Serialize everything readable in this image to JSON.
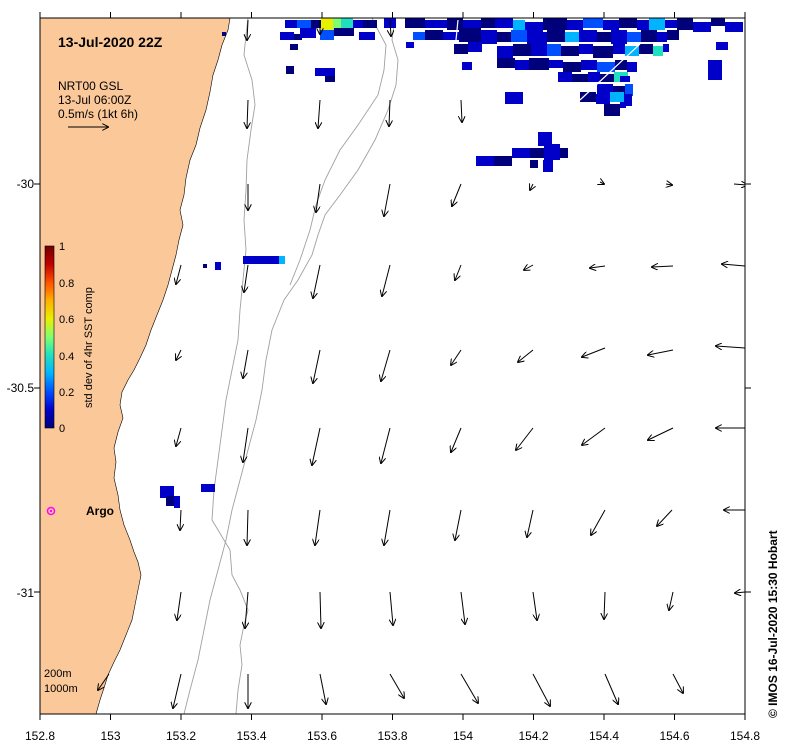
{
  "map": {
    "title": "13-Jul-2020 22Z",
    "legend_box": {
      "line1": "NRT00 GSL",
      "line2": "13-Jul 06:00Z",
      "line3": "0.5m/s (1kt 6h)"
    },
    "colorbar": {
      "label": "std dev of 4hr SST comp",
      "ticks": [
        "1",
        "0.8",
        "0.6",
        "0.4",
        "0.2",
        "0"
      ],
      "colors": [
        "#00007a",
        "#0000c8",
        "#0050ff",
        "#00b4ff",
        "#20e0c0",
        "#80ff70",
        "#e8f000",
        "#ffb000",
        "#ff5000",
        "#c00000",
        "#700000"
      ]
    },
    "x_ticks": [
      "152.8",
      "153",
      "153.2",
      "153.4",
      "153.6",
      "153.8",
      "154",
      "154.2",
      "154.4",
      "154.6",
      "154.8"
    ],
    "y_ticks": [
      "-30",
      "-30.5",
      "-31"
    ],
    "isobaths": {
      "label_200": "200m",
      "label_1000": "1000m"
    },
    "argo": {
      "label": "Argo",
      "color": "#ff00ff"
    },
    "credit": "© IMOS 16-Jul-2020 15:30 Hobart",
    "land_color": "#fbc89a",
    "isobath_color": "#a0a0a0"
  }
}
